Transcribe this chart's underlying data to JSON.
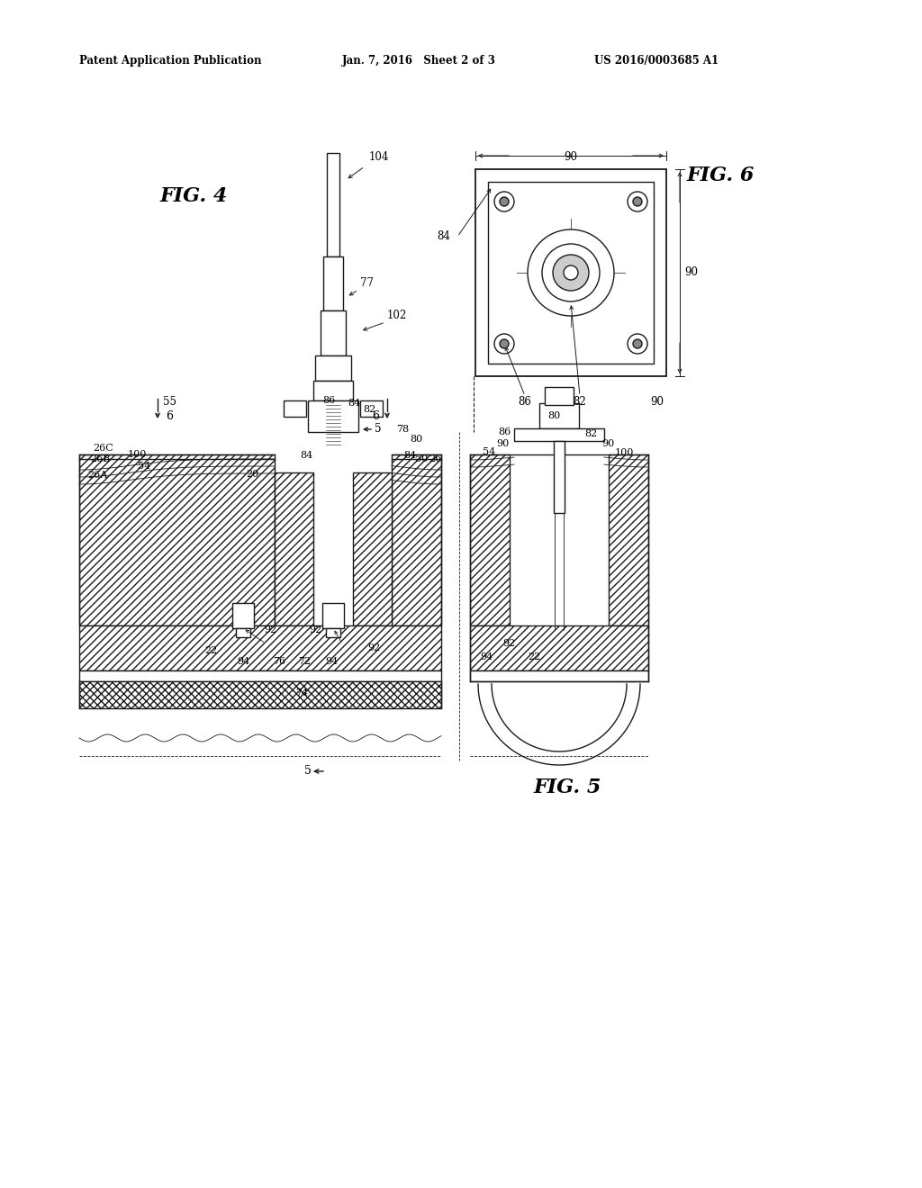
{
  "background_color": "#ffffff",
  "header_left": "Patent Application Publication",
  "header_center": "Jan. 7, 2016   Sheet 2 of 3",
  "header_right": "US 2016/0003685 A1",
  "fig4_label": "FIG. 4",
  "fig5_label": "FIG. 5",
  "fig6_label": "FIG. 6",
  "line_color": "#1a1a1a",
  "text_color": "#1a1a1a"
}
